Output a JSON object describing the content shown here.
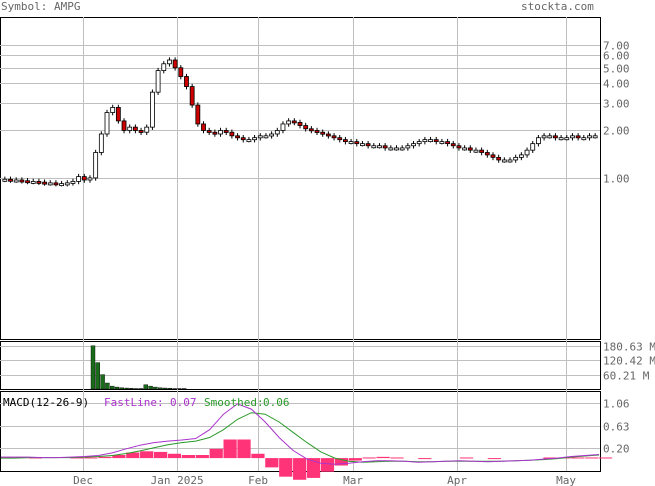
{
  "header": {
    "symbol_label": "Symbol: AMPG",
    "site": "stockta.com"
  },
  "colors": {
    "up": "#ffffff",
    "down": "#cc0000",
    "grid": "#bfbfbf",
    "frame": "#000000",
    "vol_bar": "#1a6b1a",
    "macd_hist": "#ff3377",
    "fast_line": "#aa33cc",
    "smooth_line": "#2a9a2a"
  },
  "chart_data": [
    {
      "type": "candlestick",
      "title": "",
      "yscale": "log",
      "ylim": [
        0.1,
        10
      ],
      "y_tick_labels": [
        "7.00",
        "6.00",
        "5.00",
        "4.00",
        "3.00",
        "2.00",
        "1.00"
      ],
      "y_ticks": [
        7,
        6,
        5,
        4,
        3,
        2,
        1
      ],
      "x_tick_labels": [
        "Dec",
        "Jan 2025",
        "Feb",
        "Mar",
        "Apr",
        "May"
      ],
      "gridlines": true,
      "approx_closes": [
        0.98,
        0.97,
        0.97,
        0.96,
        0.95,
        0.95,
        0.94,
        0.93,
        0.93,
        0.92,
        0.92,
        0.93,
        0.95,
        1.02,
        0.97,
        1.0,
        1.45,
        1.9,
        2.6,
        2.8,
        2.3,
        2.0,
        2.1,
        2.0,
        1.95,
        2.1,
        3.5,
        4.8,
        5.3,
        5.6,
        5.0,
        4.4,
        3.8,
        2.9,
        2.2,
        2.0,
        1.95,
        1.9,
        2.0,
        1.95,
        1.85,
        1.8,
        1.75,
        1.75,
        1.8,
        1.85,
        1.85,
        1.9,
        2.0,
        2.2,
        2.3,
        2.25,
        2.15,
        2.05,
        2.0,
        1.95,
        1.9,
        1.85,
        1.8,
        1.75,
        1.7,
        1.7,
        1.65,
        1.65,
        1.6,
        1.6,
        1.6,
        1.55,
        1.55,
        1.55,
        1.55,
        1.6,
        1.65,
        1.7,
        1.75,
        1.75,
        1.7,
        1.7,
        1.65,
        1.6,
        1.55,
        1.55,
        1.5,
        1.5,
        1.45,
        1.4,
        1.35,
        1.3,
        1.3,
        1.3,
        1.35,
        1.4,
        1.5,
        1.65,
        1.8,
        1.85,
        1.85,
        1.8,
        1.8,
        1.8,
        1.85,
        1.8,
        1.8,
        1.85,
        1.85
      ]
    },
    {
      "type": "bar",
      "title": "",
      "series": [
        {
          "values": [
            180,
            110,
            60,
            25,
            12,
            8,
            5,
            4,
            3,
            2,
            2,
            18,
            12,
            8,
            5,
            4,
            3,
            2,
            2,
            2
          ]
        }
      ],
      "y_tick_labels": [
        "180.63 M",
        "120.42 M",
        "60.21 M"
      ],
      "y_ticks": [
        180.63,
        120.42,
        60.21
      ]
    },
    {
      "type": "line",
      "title": "MACD(12-26-9)",
      "legend": [
        {
          "label": "FastLine:",
          "value": "0.07"
        },
        {
          "label": "Smoothed:",
          "value": "0.06"
        }
      ],
      "y_tick_labels": [
        "1.06",
        "0.63",
        "0.20"
      ],
      "y_ticks": [
        1.06,
        0.63,
        0.2
      ],
      "fast_line": [
        0.02,
        0.02,
        0.02,
        0.01,
        0.01,
        0.02,
        0.03,
        0.05,
        0.1,
        0.18,
        0.25,
        0.3,
        0.33,
        0.35,
        0.38,
        0.55,
        0.85,
        1.05,
        0.95,
        0.7,
        0.4,
        0.15,
        -0.02,
        -0.1,
        -0.12,
        -0.1,
        -0.07,
        -0.05,
        -0.05,
        -0.06,
        -0.08,
        -0.07,
        -0.06,
        -0.05,
        -0.06,
        -0.07,
        -0.06,
        -0.05,
        -0.04,
        -0.02,
        0.0,
        0.03,
        0.05,
        0.07
      ],
      "smooth_line": [
        0.0,
        0.0,
        0.01,
        0.01,
        0.01,
        0.01,
        0.02,
        0.03,
        0.05,
        0.09,
        0.14,
        0.2,
        0.26,
        0.3,
        0.33,
        0.4,
        0.55,
        0.75,
        0.88,
        0.85,
        0.7,
        0.5,
        0.3,
        0.12,
        0.0,
        -0.06,
        -0.08,
        -0.07,
        -0.06,
        -0.06,
        -0.07,
        -0.07,
        -0.06,
        -0.06,
        -0.06,
        -0.06,
        -0.06,
        -0.05,
        -0.04,
        -0.03,
        -0.01,
        0.02,
        0.04,
        0.06
      ]
    }
  ]
}
